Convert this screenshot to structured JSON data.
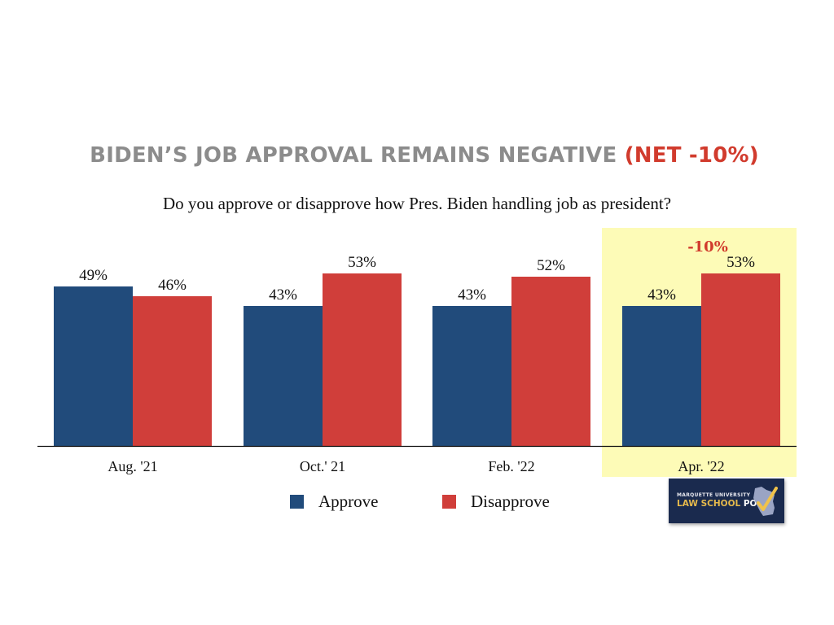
{
  "title": {
    "main": "BIDEN’S JOB APPROVAL REMAINS NEGATIVE ",
    "highlight": "(NET -10%)",
    "highlight_color": "#d13b2d",
    "main_color": "#8c8c8c"
  },
  "subtitle": "Do you approve or disapprove how Pres. Biden handling job as president?",
  "legend": {
    "items": [
      {
        "label": "Approve",
        "color": "#214b7b"
      },
      {
        "label": "Disapprove",
        "color": "#d03e3a"
      }
    ]
  },
  "logo": {
    "line1": "MARQUETTE UNIVERSITY",
    "line2_a": "LAW SCHOOL",
    "line2_b": "POLL",
    "icon": "wisconsin-checkmark-icon"
  },
  "chart_data": {
    "type": "bar",
    "title": "BIDEN’S JOB APPROVAL REMAINS NEGATIVE (NET -10%)",
    "subtitle": "Do you approve or disapprove how Pres. Biden handling job as president?",
    "xlabel": "",
    "ylabel": "",
    "categories": [
      "Aug. '21",
      "Oct.' 21",
      "Feb. '22",
      "Apr. '22"
    ],
    "series": [
      {
        "name": "Approve",
        "color": "#214b7b",
        "values": [
          49,
          43,
          43,
          43
        ],
        "labels": [
          "49%",
          "43%",
          "43%",
          "43%"
        ]
      },
      {
        "name": "Disapprove",
        "color": "#d03e3a",
        "values": [
          46,
          53,
          52,
          53
        ],
        "labels": [
          "46%",
          "53%",
          "52%",
          "53%"
        ]
      }
    ],
    "ylim": [
      0,
      60
    ],
    "grid": false,
    "legend_position": "bottom",
    "highlight": {
      "category": "Apr. '22",
      "color": "#fdfbb7",
      "annotation": "-10%",
      "annotation_color": "#d13b2d"
    }
  }
}
